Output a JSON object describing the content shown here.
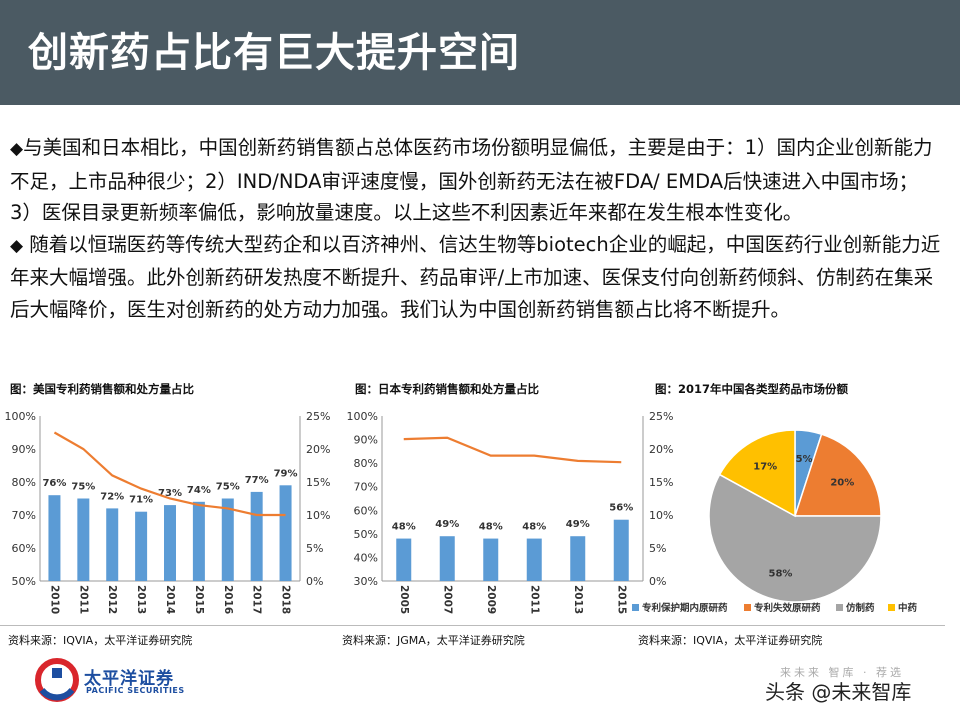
{
  "header": {
    "title": "创新药占比有巨大提升空间"
  },
  "body": {
    "bullet_glyph": "◆",
    "para1": "与美国和日本相比，中国创新药销售额占总体医药市场份额明显偏低，主要是由于：1）国内企业创新能力不足，上市品种很少；2）IND/NDA审评速度慢，国外创新药无法在被FDA/ EMDA后快速进入中国市场； 3）医保目录更新频率偏低，影响放量速度。以上这些不利因素近年来都在发生根本性变化。",
    "para2": " 随着以恒瑞医药等传统大型药企和以百济神州、信达生物等biotech企业的崛起，中国医药行业创新能力近年来大幅增强。此外创新药研发热度不断提升、药品审评/上市加速、医保支付向创新药倾斜、仿制药在集采后大幅降价，医生对创新药的处方动力加强。我们认为中国创新药销售额占比将不断提升。"
  },
  "colors": {
    "bar": "#5b9bd5",
    "line": "#ed7d31",
    "pie1": "#5b9bd5",
    "pie2": "#ed7d31",
    "pie3": "#a5a5a5",
    "pie4": "#ffc000",
    "header_bg": "#4b5a63"
  },
  "chart_data": [
    {
      "type": "bar",
      "title": "图：美国专利药销售额和处方量占比",
      "categories": [
        "2010",
        "2011",
        "2012",
        "2013",
        "2014",
        "2015",
        "2016",
        "2017",
        "2018"
      ],
      "series": [
        {
          "values": [
            76,
            75,
            72,
            71,
            73,
            74,
            75,
            77,
            79
          ],
          "axis": "left"
        },
        {
          "type": "line",
          "values": [
            22.5,
            20,
            16,
            14,
            12.5,
            11.5,
            11,
            10,
            10
          ],
          "axis": "right"
        }
      ],
      "y_left": {
        "ticks": [
          "50%",
          "60%",
          "70%",
          "80%",
          "90%",
          "100%"
        ],
        "range": [
          50,
          100
        ]
      },
      "y_right": {
        "ticks": [
          "0%",
          "5%",
          "10%",
          "15%",
          "20%",
          "25%"
        ],
        "range": [
          0,
          25
        ]
      },
      "data_labels": [
        "76%",
        "75%",
        "72%",
        "71%",
        "73%",
        "74%",
        "75%",
        "77%",
        "79%"
      ],
      "grid": false,
      "source": "资料来源：IQVIA，太平洋证券研究院"
    },
    {
      "type": "bar",
      "title": "图：日本专利药销售额和处方量占比",
      "categories": [
        "2005",
        "2007",
        "2009",
        "2011",
        "2013",
        "2015"
      ],
      "series": [
        {
          "values": [
            48,
            49,
            48,
            48,
            49,
            56
          ],
          "axis": "left"
        },
        {
          "type": "line",
          "values": [
            21.5,
            21.7,
            19,
            19,
            18.2,
            18
          ],
          "axis": "right"
        }
      ],
      "y_left": {
        "ticks": [
          "30%",
          "40%",
          "50%",
          "60%",
          "70%",
          "80%",
          "90%",
          "100%"
        ],
        "range": [
          30,
          100
        ]
      },
      "y_right": {
        "ticks": [
          "0%",
          "5%",
          "10%",
          "15%",
          "20%",
          "25%"
        ],
        "range": [
          0,
          25
        ]
      },
      "data_labels": [
        "48%",
        "49%",
        "48%",
        "48%",
        "49%",
        "56%"
      ],
      "grid": false,
      "source": "资料来源：JGMA，太平洋证券研究院"
    },
    {
      "type": "pie",
      "title": "图：2017年中国各类型药品市场份额",
      "slices": [
        {
          "name": "专利保护期内原研药",
          "value": 5,
          "label": "5%"
        },
        {
          "name": "专利失效原研药",
          "value": 20,
          "label": "20%"
        },
        {
          "name": "仿制药",
          "value": 58,
          "label": "58%"
        },
        {
          "name": "中药",
          "value": 17,
          "label": "17%"
        }
      ],
      "legend": "bottom",
      "source": "资料来源：IQVIA，太平洋证券研究院"
    }
  ],
  "footer": {
    "logo_cn": "太平洋证券",
    "logo_en": "PACIFIC SECURITIES",
    "watermark": "头条 @未来智库",
    "watermark_top": "来未来 智库 · 荐选"
  }
}
